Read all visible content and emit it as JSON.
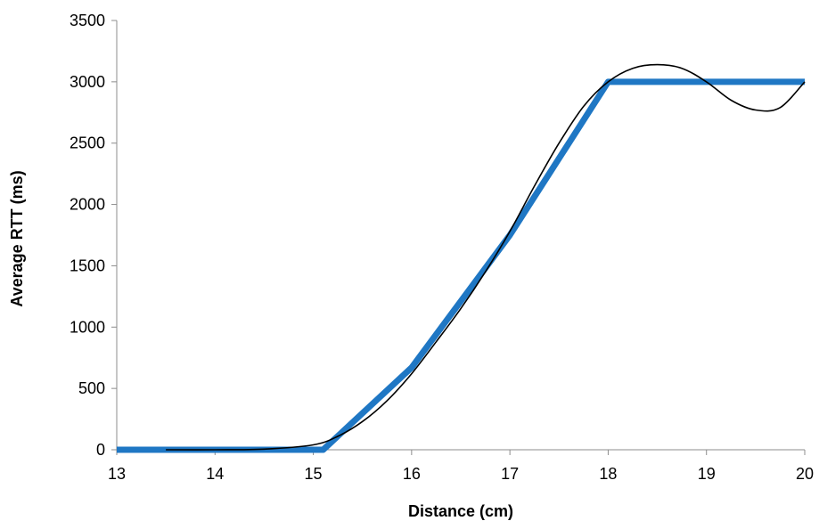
{
  "chart_data": {
    "type": "line",
    "title": "",
    "xlabel": "Distance (cm)",
    "ylabel": "Average RTT (ms)",
    "xlim": [
      13,
      20
    ],
    "ylim": [
      0,
      3500
    ],
    "x_ticks": [
      13,
      14,
      15,
      16,
      17,
      18,
      19,
      20
    ],
    "y_ticks": [
      0,
      500,
      1000,
      1500,
      2000,
      2500,
      3000,
      3500
    ],
    "grid": false,
    "legend": "none",
    "series": [
      {
        "color": "#1f77c4",
        "style": "thick",
        "x": [
          13,
          14,
          15,
          15.1,
          16,
          17,
          18,
          19,
          20
        ],
        "y": [
          0,
          0,
          0,
          0,
          670,
          1750,
          3000,
          3000,
          3000
        ]
      },
      {
        "color": "#000000",
        "style": "thin",
        "x": [
          13.5,
          14,
          14.5,
          15,
          15.25,
          15.5,
          15.75,
          16,
          16.25,
          16.5,
          16.75,
          17,
          17.25,
          17.5,
          17.75,
          18,
          18.25,
          18.5,
          18.75,
          19,
          19.25,
          19.5,
          19.75,
          20
        ],
        "y": [
          0,
          0,
          5,
          40,
          110,
          230,
          400,
          620,
          880,
          1150,
          1450,
          1780,
          2150,
          2500,
          2800,
          3000,
          3110,
          3140,
          3110,
          3000,
          2850,
          2770,
          2790,
          3000
        ]
      }
    ]
  }
}
